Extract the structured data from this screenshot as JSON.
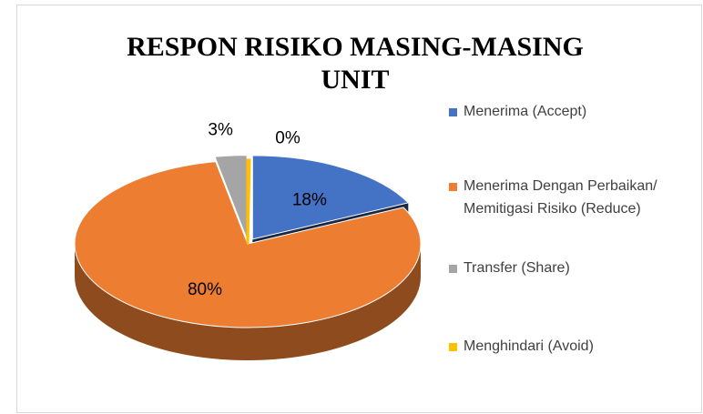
{
  "chart_data": {
    "type": "pie3d",
    "title": "RESPON RISIKO MASING-MASING UNIT",
    "categories": [
      "Menerima (Accept)",
      "Menerima Dengan Perbaikan/ Memitigasi Risiko (Reduce)",
      "Transfer (Share)",
      "Menghindari (Avoid)"
    ],
    "values": [
      18,
      80,
      3,
      0
    ],
    "value_labels": [
      "18%",
      "80%",
      "3%",
      "0%"
    ],
    "colors": [
      "#4472c4",
      "#ed7d31",
      "#a5a5a5",
      "#ffc000"
    ],
    "legend": "right"
  }
}
